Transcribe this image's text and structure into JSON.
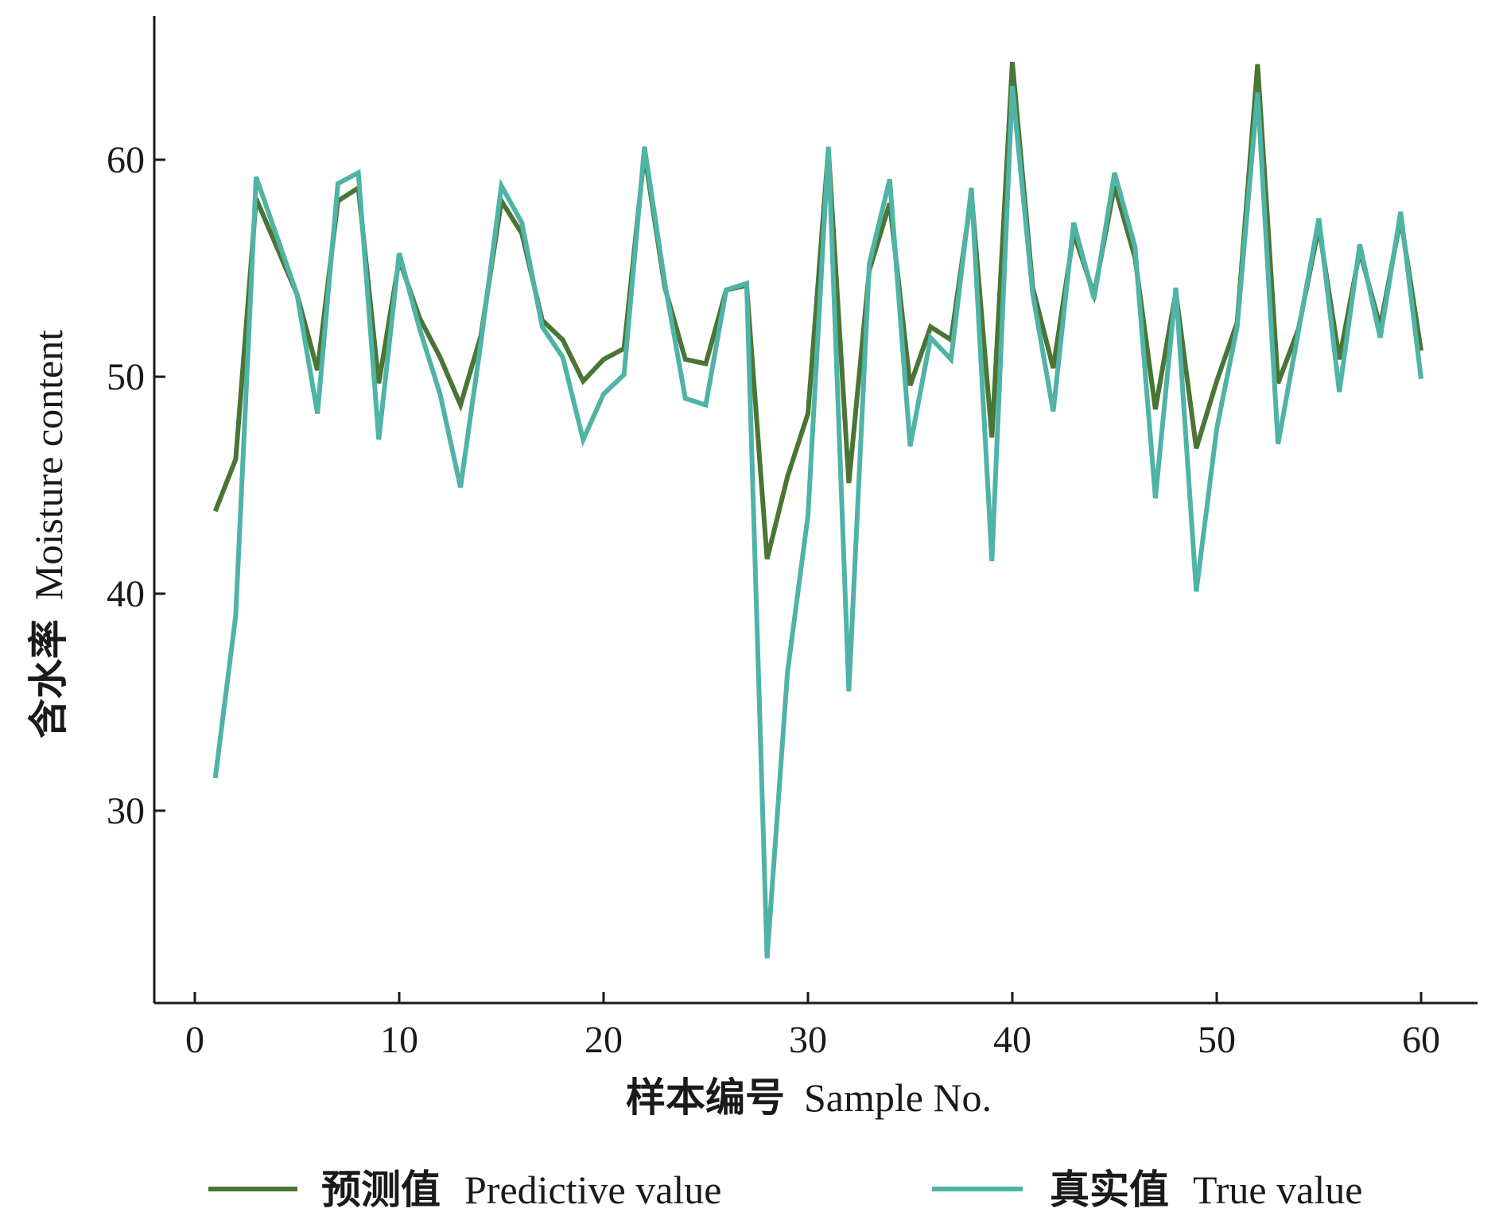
{
  "chart_data": {
    "type": "line",
    "xlabel_zh": "样本编号",
    "xlabel_en": "Sample No.",
    "ylabel_zh": "含水率",
    "ylabel_en": "Moisture content",
    "xlim": [
      -2,
      63
    ],
    "ylim": [
      22,
      67
    ],
    "xticks": [
      0,
      10,
      20,
      30,
      40,
      50,
      60
    ],
    "yticks": [
      30,
      40,
      50,
      60
    ],
    "legend_position": "bottom",
    "x": [
      1,
      2,
      3,
      4,
      5,
      6,
      7,
      8,
      9,
      10,
      11,
      12,
      13,
      14,
      15,
      16,
      17,
      18,
      19,
      20,
      21,
      22,
      23,
      24,
      25,
      26,
      27,
      28,
      29,
      30,
      31,
      32,
      33,
      34,
      35,
      36,
      37,
      38,
      39,
      40,
      41,
      42,
      43,
      44,
      45,
      46,
      47,
      48,
      49,
      50,
      51,
      52,
      53,
      54,
      55,
      56,
      57,
      58,
      59,
      60
    ],
    "series": [
      {
        "name_zh": "预测值",
        "name_en": "Predictive value",
        "color": "#4a7535",
        "values": [
          43.8,
          46.2,
          58.2,
          56.0,
          53.8,
          50.3,
          58.1,
          58.7,
          49.7,
          55.4,
          52.7,
          50.9,
          48.7,
          51.9,
          58.1,
          56.6,
          52.6,
          51.7,
          49.8,
          50.8,
          51.3,
          60.3,
          54.1,
          50.8,
          50.6,
          54.0,
          54.2,
          41.6,
          45.4,
          48.3,
          60.5,
          45.1,
          54.9,
          58.0,
          49.6,
          52.3,
          51.7,
          58.4,
          47.2,
          64.5,
          54.1,
          50.4,
          56.6,
          53.8,
          58.8,
          55.5,
          48.5,
          53.9,
          46.7,
          49.8,
          52.5,
          64.4,
          49.7,
          52.2,
          56.9,
          50.8,
          55.8,
          52.3,
          57.3,
          51.2
        ]
      },
      {
        "name_zh": "真实值",
        "name_en": "True value",
        "color": "#4fb3a5",
        "values": [
          31.5,
          39.0,
          59.2,
          56.5,
          53.8,
          48.3,
          58.9,
          59.4,
          47.1,
          55.7,
          52.2,
          49.2,
          44.9,
          51.6,
          58.8,
          57.1,
          52.3,
          50.9,
          47.1,
          49.2,
          50.1,
          60.6,
          54.3,
          49.0,
          48.7,
          54.0,
          54.3,
          23.2,
          36.4,
          43.6,
          60.6,
          35.5,
          55.2,
          59.1,
          46.8,
          51.8,
          50.8,
          58.7,
          41.5,
          63.4,
          53.8,
          48.4,
          57.1,
          53.6,
          59.4,
          56.0,
          44.4,
          54.1,
          40.1,
          47.6,
          52.3,
          63.1,
          46.9,
          52.1,
          57.3,
          49.3,
          56.1,
          51.8,
          57.6,
          49.9
        ]
      }
    ]
  }
}
